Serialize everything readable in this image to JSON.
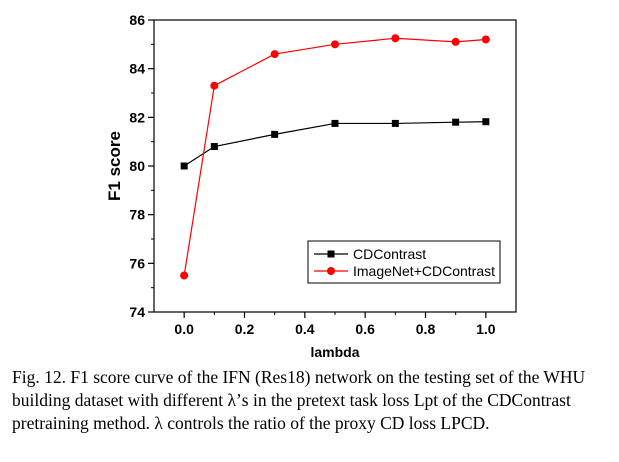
{
  "chart_data": {
    "type": "line",
    "title": "",
    "xlabel": "lambda",
    "ylabel": "F1 score",
    "xlim": [
      -0.1,
      1.1
    ],
    "ylim": [
      74,
      86
    ],
    "xticks": [
      0.0,
      0.2,
      0.4,
      0.6,
      0.8,
      1.0
    ],
    "xtick_labels": [
      "0.0",
      "0.2",
      "0.4",
      "0.6",
      "0.8",
      "1.0"
    ],
    "yticks": [
      74,
      76,
      78,
      80,
      82,
      84,
      86
    ],
    "ytick_labels": [
      "74",
      "76",
      "78",
      "80",
      "82",
      "84",
      "86"
    ],
    "legend_position": "bottom-right",
    "series": [
      {
        "name": "CDContrast",
        "color": "#000000",
        "marker": "square",
        "x": [
          0.0,
          0.1,
          0.3,
          0.5,
          0.7,
          0.9,
          1.0
        ],
        "values": [
          80.0,
          80.8,
          81.3,
          81.75,
          81.75,
          81.8,
          81.82
        ]
      },
      {
        "name": "ImageNet+CDContrast",
        "color": "#ff0000",
        "marker": "circle",
        "x": [
          0.0,
          0.1,
          0.3,
          0.5,
          0.7,
          0.9,
          1.0
        ],
        "values": [
          75.5,
          83.3,
          84.6,
          85.0,
          85.25,
          85.1,
          85.2
        ]
      }
    ]
  },
  "caption": {
    "label": "Fig. 12.",
    "text": "F1 score curve of the IFN (Res18) network on the testing set of the WHU building dataset with different λ’s in the pretext task loss Lpt of the CDContrast pretraining method. λ controls the ratio of the proxy CD loss LPCD."
  }
}
